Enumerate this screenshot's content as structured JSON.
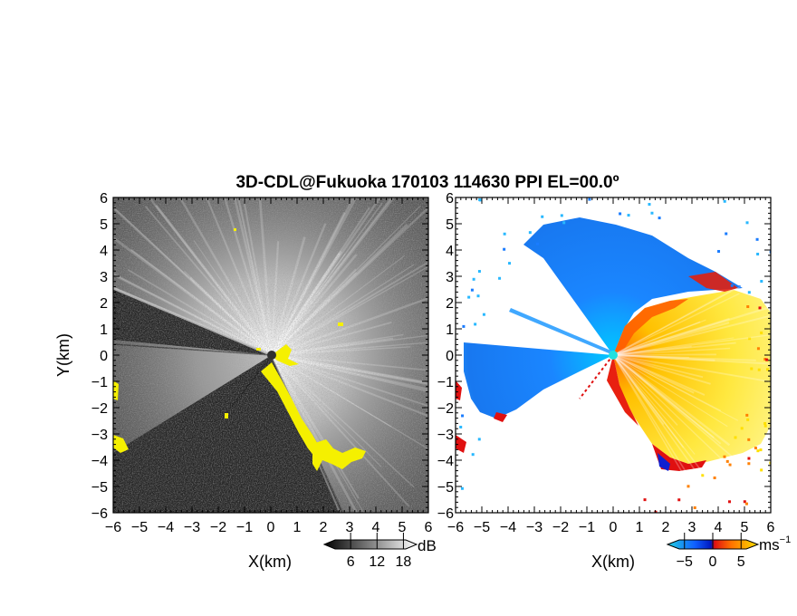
{
  "title": "3D-CDL@Fukuoka 170103 114630 PPI EL=00.0º",
  "chart_data": [
    {
      "type": "heatmap",
      "name": "left-panel",
      "field": "signal intensity (grayscale) with yellow echo mask",
      "xlabel": "X(km)",
      "ylabel": "Y(km)",
      "xlim": [
        -6,
        6
      ],
      "ylim": [
        -6,
        6
      ],
      "xticks": [
        "−6",
        "−5",
        "−4",
        "−3",
        "−2",
        "−1",
        "0",
        "1",
        "2",
        "3",
        "4",
        "5",
        "6"
      ],
      "yticks": [
        "6",
        "5",
        "4",
        "3",
        "2",
        "1",
        "0",
        "−1",
        "−2",
        "−3",
        "−4",
        "−5",
        "−6"
      ],
      "colorbar": {
        "unit": "dB",
        "ticks": [
          "6",
          "12",
          "18"
        ],
        "range": [
          0,
          21
        ],
        "colors": [
          "#000000",
          "#ffffff"
        ]
      },
      "mask_color": "#f5f000"
    },
    {
      "type": "heatmap",
      "name": "right-panel",
      "field": "radial velocity",
      "xlabel": "X(km)",
      "xlim": [
        -6,
        6
      ],
      "ylim": [
        -6,
        6
      ],
      "xticks": [
        "−6",
        "−5",
        "−4",
        "−3",
        "−2",
        "−1",
        "0",
        "1",
        "2",
        "3",
        "4",
        "5",
        "6"
      ],
      "yticks": [
        "6",
        "5",
        "4",
        "3",
        "2",
        "1",
        "0",
        "−1",
        "−2",
        "−3",
        "−4",
        "−5",
        "−6"
      ],
      "colorbar": {
        "unit": "ms",
        "unit_exp": "−1",
        "ticks": [
          "−5",
          "0",
          "5"
        ],
        "range": [
          -8,
          8
        ],
        "colors": [
          "#22d0e0",
          "#1060ff",
          "#0018c0",
          "#e01010",
          "#ff7000",
          "#ffe000"
        ]
      }
    }
  ]
}
